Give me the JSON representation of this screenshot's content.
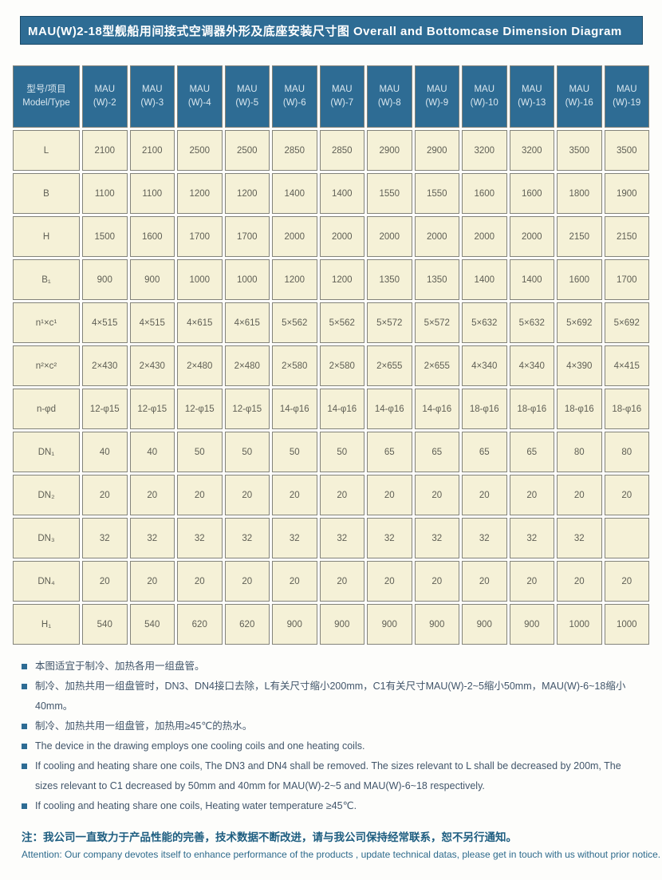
{
  "title": "MAU(W)2-18型舰船用间接式空调器外形及底座安装尺寸图 Overall and Bottomcase Dimension Diagram",
  "colors": {
    "header_blue": "#2e6c94",
    "cell_cream": "#f5f1d7",
    "cell_border": "#83837a",
    "note_text": "#41556a",
    "footer_teal": "#1d5d80"
  },
  "table": {
    "corner": {
      "zh": "型号/项目",
      "en": "Model/Type"
    },
    "columns": [
      {
        "l1": "MAU",
        "l2": "(W)-2"
      },
      {
        "l1": "MAU",
        "l2": "(W)-3"
      },
      {
        "l1": "MAU",
        "l2": "(W)-4"
      },
      {
        "l1": "MAU",
        "l2": "(W)-5"
      },
      {
        "l1": "MAU",
        "l2": "(W)-6"
      },
      {
        "l1": "MAU",
        "l2": "(W)-7"
      },
      {
        "l1": "MAU",
        "l2": "(W)-8"
      },
      {
        "l1": "MAU",
        "l2": "(W)-9"
      },
      {
        "l1": "MAU",
        "l2": "(W)-10"
      },
      {
        "l1": "MAU",
        "l2": "(W)-13"
      },
      {
        "l1": "MAU",
        "l2": "(W)-16"
      },
      {
        "l1": "MAU",
        "l2": "(W)-19"
      }
    ],
    "rows": [
      {
        "label": "L",
        "values": [
          "2100",
          "2100",
          "2500",
          "2500",
          "2850",
          "2850",
          "2900",
          "2900",
          "3200",
          "3200",
          "3500",
          "3500"
        ]
      },
      {
        "label": "B",
        "values": [
          "1100",
          "1100",
          "1200",
          "1200",
          "1400",
          "1400",
          "1550",
          "1550",
          "1600",
          "1600",
          "1800",
          "1900"
        ]
      },
      {
        "label": "H",
        "values": [
          "1500",
          "1600",
          "1700",
          "1700",
          "2000",
          "2000",
          "2000",
          "2000",
          "2000",
          "2000",
          "2150",
          "2150"
        ]
      },
      {
        "label": "B₁",
        "values": [
          "900",
          "900",
          "1000",
          "1000",
          "1200",
          "1200",
          "1350",
          "1350",
          "1400",
          "1400",
          "1600",
          "1700"
        ]
      },
      {
        "label": "n¹×c¹",
        "values": [
          "4×515",
          "4×515",
          "4×615",
          "4×615",
          "5×562",
          "5×562",
          "5×572",
          "5×572",
          "5×632",
          "5×632",
          "5×692",
          "5×692"
        ]
      },
      {
        "label": "n²×c²",
        "values": [
          "2×430",
          "2×430",
          "2×480",
          "2×480",
          "2×580",
          "2×580",
          "2×655",
          "2×655",
          "4×340",
          "4×340",
          "4×390",
          "4×415"
        ]
      },
      {
        "label": "n-φd",
        "values": [
          "12-φ15",
          "12-φ15",
          "12-φ15",
          "12-φ15",
          "14-φ16",
          "14-φ16",
          "14-φ16",
          "14-φ16",
          "18-φ16",
          "18-φ16",
          "18-φ16",
          "18-φ16"
        ]
      },
      {
        "label": "DN₁",
        "values": [
          "40",
          "40",
          "50",
          "50",
          "50",
          "50",
          "65",
          "65",
          "65",
          "65",
          "80",
          "80"
        ]
      },
      {
        "label": "DN₂",
        "values": [
          "20",
          "20",
          "20",
          "20",
          "20",
          "20",
          "20",
          "20",
          "20",
          "20",
          "20",
          "20"
        ]
      },
      {
        "label": "DN₃",
        "values": [
          "32",
          "32",
          "32",
          "32",
          "32",
          "32",
          "32",
          "32",
          "32",
          "32",
          "32",
          ""
        ]
      },
      {
        "label": "DN₄",
        "values": [
          "20",
          "20",
          "20",
          "20",
          "20",
          "20",
          "20",
          "20",
          "20",
          "20",
          "20",
          "20"
        ]
      },
      {
        "label": "H₁",
        "values": [
          "540",
          "540",
          "620",
          "620",
          "900",
          "900",
          "900",
          "900",
          "900",
          "900",
          "1000",
          "1000"
        ]
      }
    ]
  },
  "notes": [
    "本图适宜于制冷、加热各用一组盘管。",
    "制冷、加热共用一组盘管时，DN3、DN4接口去除，L有关尺寸缩小200mm，C1有关尺寸MAU(W)-2~5缩小50mm，MAU(W)-6~18缩小40mm。",
    "制冷、加热共用一组盘管，加热用≥45℃的热水。",
    "The device in the drawing employs one cooling coils and one heating coils.",
    "If cooling and heating share one coils, The DN3 and DN4 shall be removed. The sizes relevant to L shall be decreased by 200m, The sizes relevant to C1 decreased by 50mm and 40mm for MAU(W)-2~5 and MAU(W)-6~18 respectively.",
    "If cooling and heating share one coils, Heating water temperature ≥45℃."
  ],
  "footer": {
    "zh": "注：我公司一直致力于产品性能的完善，技术数据不断改进，请与我公司保持经常联系，恕不另行通知。",
    "en": "Attention: Our company devotes itself to enhance performance of the products , update technical datas, please get in touch with us without prior notice."
  }
}
